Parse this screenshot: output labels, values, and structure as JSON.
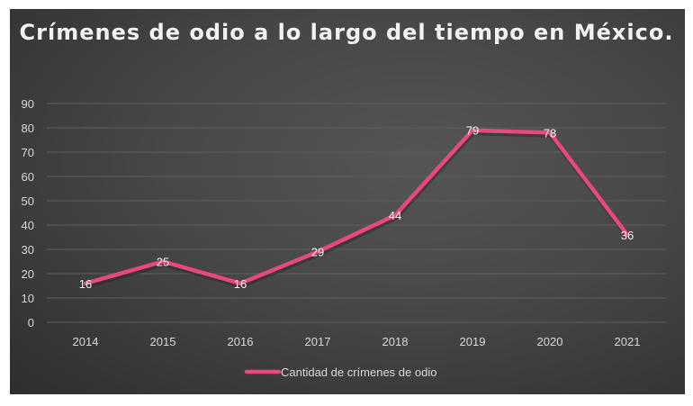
{
  "chart_data": {
    "type": "line",
    "title": "Crímenes de odio a lo largo del tiempo en México.",
    "xlabel": "",
    "ylabel": "",
    "categories": [
      "2014",
      "2015",
      "2016",
      "2017",
      "2018",
      "2019",
      "2020",
      "2021"
    ],
    "series": [
      {
        "name": "Cantidad de crímenes de odio",
        "values": [
          16,
          25,
          16,
          29,
          44,
          79,
          78,
          36
        ],
        "color": "#e8487c"
      }
    ],
    "ylim": [
      0,
      90
    ],
    "yticks": [
      0,
      10,
      20,
      30,
      40,
      50,
      60,
      70,
      80,
      90
    ],
    "grid": true,
    "legend": "bottom",
    "data_labels": true
  }
}
